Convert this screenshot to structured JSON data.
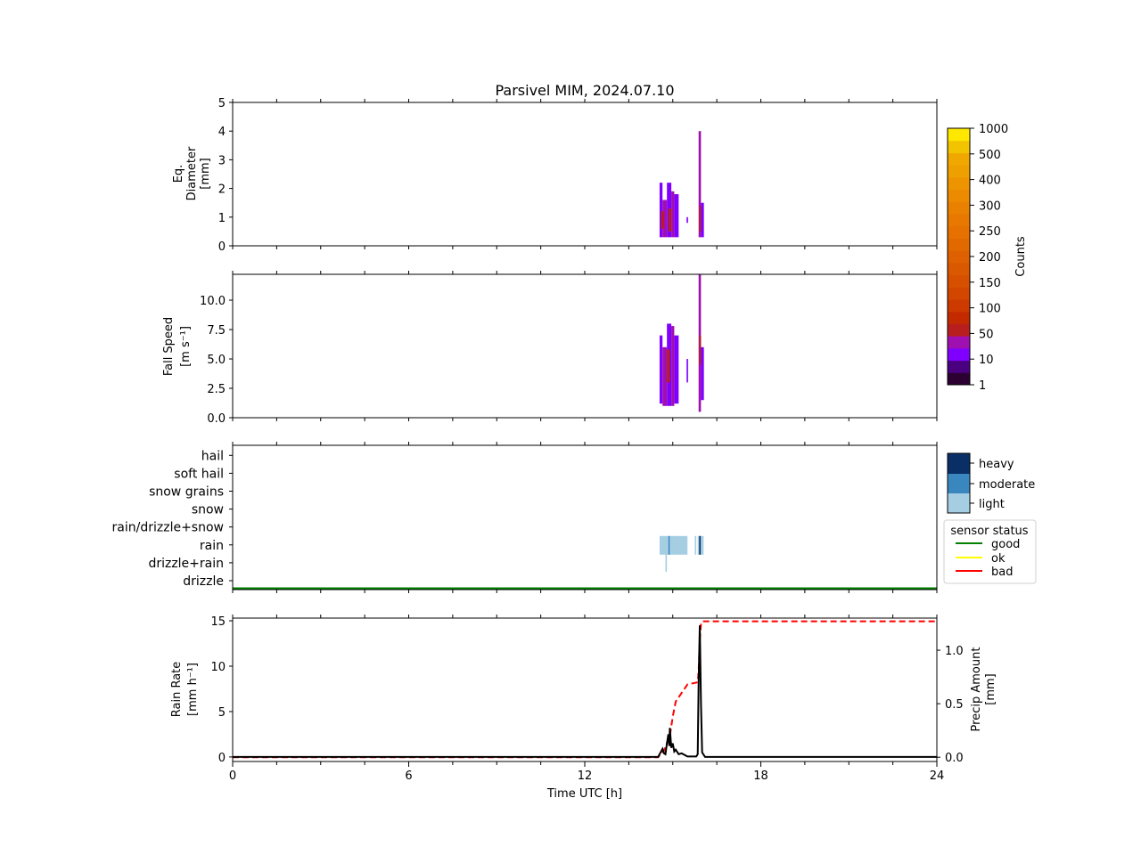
{
  "chart_data": [
    {
      "type": "heatmap",
      "panel": "diameter",
      "title": "Parsivel MIM, 2024.07.10",
      "xlabel": "",
      "ylabel_lines": [
        "Eq.",
        "Diameter",
        "[mm]"
      ],
      "xlim": [
        0,
        24
      ],
      "ylim": [
        0,
        5
      ],
      "yticks": [
        "0",
        "1",
        "2",
        "3",
        "4",
        "5"
      ],
      "yticks_values": [
        0,
        1,
        2,
        3,
        4,
        5
      ],
      "cells": [
        {
          "t0": 14.55,
          "t1": 14.65,
          "d0": 0.3,
          "d1": 2.2,
          "c": 2
        },
        {
          "t0": 14.65,
          "t1": 14.8,
          "d0": 0.3,
          "d1": 1.6,
          "c": 3
        },
        {
          "t0": 14.8,
          "t1": 14.95,
          "d0": 0.3,
          "d1": 2.2,
          "c": 2
        },
        {
          "t0": 14.95,
          "t1": 15.05,
          "d0": 0.3,
          "d1": 1.9,
          "c": 3
        },
        {
          "t0": 15.05,
          "t1": 15.2,
          "d0": 0.3,
          "d1": 1.8,
          "c": 2
        },
        {
          "t0": 14.6,
          "t1": 14.7,
          "d0": 0.6,
          "d1": 1.2,
          "c": 4
        },
        {
          "t0": 14.85,
          "t1": 14.95,
          "d0": 0.5,
          "d1": 1.3,
          "c": 4
        },
        {
          "t0": 15.47,
          "t1": 15.52,
          "d0": 0.8,
          "d1": 1.0,
          "c": 2
        },
        {
          "t0": 15.88,
          "t1": 15.96,
          "d0": 0.3,
          "d1": 4.0,
          "c": 3
        },
        {
          "t0": 15.96,
          "t1": 16.06,
          "d0": 0.3,
          "d1": 1.5,
          "c": 2
        },
        {
          "t0": 15.9,
          "t1": 15.96,
          "d0": 0.5,
          "d1": 1.4,
          "c": 4
        }
      ]
    },
    {
      "type": "heatmap",
      "panel": "fall-speed",
      "ylabel_lines": [
        "Fall Speed",
        "[m s⁻¹]"
      ],
      "xlim": [
        0,
        24
      ],
      "ylim": [
        0,
        12.2
      ],
      "yticks": [
        "0.0",
        "2.5",
        "5.0",
        "7.5",
        "10.0"
      ],
      "yticks_values": [
        0,
        2.5,
        5,
        7.5,
        10
      ],
      "cells": [
        {
          "t0": 14.55,
          "t1": 14.65,
          "v0": 1.2,
          "v1": 7.0,
          "c": 2
        },
        {
          "t0": 14.65,
          "t1": 14.8,
          "v0": 1.0,
          "v1": 6.0,
          "c": 3
        },
        {
          "t0": 14.8,
          "t1": 14.95,
          "v0": 1.0,
          "v1": 8.0,
          "c": 2
        },
        {
          "t0": 14.95,
          "t1": 15.05,
          "v0": 1.0,
          "v1": 7.8,
          "c": 3
        },
        {
          "t0": 15.05,
          "t1": 15.2,
          "v0": 1.2,
          "v1": 7.0,
          "c": 2
        },
        {
          "t0": 14.8,
          "t1": 14.9,
          "v0": 3.0,
          "v1": 5.8,
          "c": 4
        },
        {
          "t0": 15.47,
          "t1": 15.52,
          "v0": 3.0,
          "v1": 5.0,
          "c": 2
        },
        {
          "t0": 15.88,
          "t1": 15.96,
          "v0": 0.5,
          "v1": 12.2,
          "c": 3
        },
        {
          "t0": 15.96,
          "t1": 16.06,
          "v0": 1.5,
          "v1": 6.0,
          "c": 2
        },
        {
          "t0": 15.9,
          "t1": 15.96,
          "v0": 4.5,
          "v1": 7.0,
          "c": 4
        }
      ]
    },
    {
      "type": "heatmap",
      "panel": "precip-type",
      "categories": [
        "drizzle",
        "drizzle+rain",
        "rain",
        "rain/drizzle+snow",
        "snow",
        "snow grains",
        "soft hail",
        "hail"
      ],
      "xlim": [
        0,
        24
      ],
      "intensity_legend": [
        "heavy",
        "moderate",
        "light"
      ],
      "sensor_status_legend": {
        "title": "sensor status",
        "entries": [
          "good",
          "ok",
          "bad"
        ]
      },
      "sensor_status_value": "good",
      "blocks": [
        {
          "t0": 14.55,
          "t1": 15.5,
          "cat": "rain",
          "level": "light"
        },
        {
          "t0": 14.85,
          "t1": 14.88,
          "cat": "rain",
          "level": "moderate"
        },
        {
          "t0": 15.75,
          "t1": 15.8,
          "cat": "rain",
          "level": "light"
        },
        {
          "t0": 15.85,
          "t1": 16.05,
          "cat": "rain",
          "level": "light"
        },
        {
          "t0": 15.9,
          "t1": 15.95,
          "cat": "rain",
          "level": "heavy"
        },
        {
          "t0": 14.75,
          "t1": 14.8,
          "cat": "drizzle+rain",
          "level": "light"
        }
      ]
    },
    {
      "type": "line",
      "panel": "rain-rate",
      "xlabel": "Time UTC [h]",
      "ylabel_lines": [
        "Rain Rate",
        "[mm h⁻¹]"
      ],
      "y2label_lines": [
        "Precip Amount",
        "[mm]"
      ],
      "xlim": [
        0,
        24
      ],
      "ylim": [
        -0.5,
        15.3
      ],
      "y2lim": [
        -0.04,
        1.3
      ],
      "xticks": [
        "0",
        "6",
        "12",
        "18",
        "24"
      ],
      "xticks_values": [
        0,
        6,
        12,
        18,
        24
      ],
      "yticks": [
        "0",
        "5",
        "10",
        "15"
      ],
      "yticks_values": [
        0,
        5,
        10,
        15
      ],
      "y2ticks": [
        "0.0",
        "0.5",
        "1.0"
      ],
      "y2ticks_values": [
        0,
        0.5,
        1.0
      ],
      "series": [
        {
          "name": "Rain Rate",
          "axis": "left",
          "x": [
            0,
            14.5,
            14.6,
            14.65,
            14.7,
            14.75,
            14.8,
            14.85,
            14.88,
            14.9,
            14.95,
            15.0,
            15.05,
            15.1,
            15.2,
            15.3,
            15.5,
            15.8,
            15.85,
            15.88,
            15.92,
            15.96,
            16.0,
            16.1,
            24
          ],
          "y": [
            0,
            0,
            0.6,
            0.9,
            0.4,
            0.3,
            1.5,
            2.5,
            1.2,
            3.2,
            1.0,
            1.5,
            0.6,
            0.8,
            0.3,
            0.4,
            0.05,
            0.05,
            0.3,
            8.0,
            14.5,
            6.0,
            0.5,
            0,
            0
          ]
        },
        {
          "name": "Precip Amount",
          "axis": "right",
          "x": [
            0,
            14.5,
            14.7,
            14.9,
            15.0,
            15.1,
            15.3,
            15.5,
            15.85,
            15.88,
            15.92,
            15.96,
            16.0,
            24
          ],
          "y": [
            0,
            0,
            0.06,
            0.2,
            0.38,
            0.52,
            0.6,
            0.68,
            0.7,
            0.8,
            1.1,
            1.24,
            1.27,
            1.27
          ]
        }
      ]
    }
  ],
  "colorbar": {
    "label": "Counts",
    "ticks": [
      "1",
      "10",
      "50",
      "100",
      "150",
      "200",
      "250",
      "300",
      "400",
      "500",
      "1000"
    ],
    "colors": [
      "#2d0033",
      "#4b0082",
      "#8000ff",
      "#a010b0",
      "#b81e1e",
      "#c42a00",
      "#cc3a00",
      "#d24600",
      "#d65000",
      "#da5800",
      "#de6000",
      "#e26800",
      "#e67000",
      "#e87800",
      "#ea8000",
      "#ec8a00",
      "#ee9400",
      "#eea000",
      "#f0a800",
      "#f2c400",
      "#ffe800"
    ]
  },
  "colors": {
    "count_levels": [
      "#2d0033",
      "#4b0082",
      "#8000ff",
      "#a010b0",
      "#b81e1e"
    ],
    "intensity": {
      "light": "#a6cee3",
      "moderate": "#3a87c0",
      "heavy": "#0a2f66"
    },
    "status": {
      "good": "#008000",
      "ok": "#ffff00",
      "bad": "#ff0000"
    },
    "rain_rate": "#000000",
    "precip_amount": "#ff0000"
  }
}
